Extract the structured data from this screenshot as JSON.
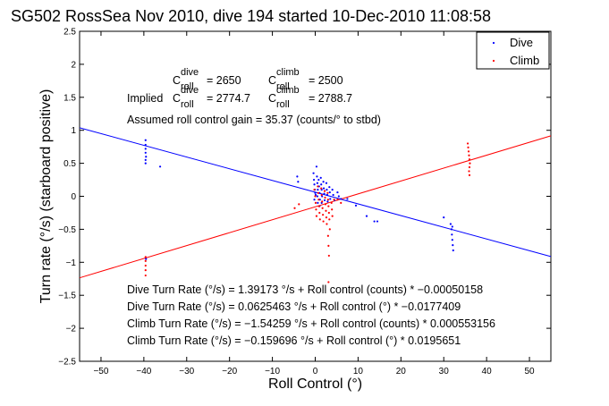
{
  "chart_data": {
    "type": "scatter",
    "title": "SG502 RossSea Nov 2010, dive 194 started 10-Dec-2010 11:08:58",
    "xlabel": "Roll Control (°)",
    "ylabel": "Turn rate (°/s) (starboard positive)",
    "xlim": [
      -55,
      55
    ],
    "ylim": [
      -2.5,
      2.5
    ],
    "xticks": [
      -50,
      -40,
      -30,
      -20,
      -10,
      0,
      10,
      20,
      30,
      40,
      50
    ],
    "yticks": [
      -2.5,
      -2,
      -1.5,
      -1,
      -0.5,
      0,
      0.5,
      1,
      1.5,
      2,
      2.5
    ],
    "grid": false,
    "legend": {
      "position": "top-right",
      "entries": [
        {
          "label": "Dive",
          "color": "#0000ff"
        },
        {
          "label": "Climb",
          "color": "#ff0000"
        }
      ]
    },
    "series": [
      {
        "name": "Dive",
        "color": "#0000ff",
        "fit": {
          "intercept": 0.0625463,
          "slope": -0.0177409
        },
        "points": [
          [
            -39.6,
            0.85
          ],
          [
            -39.6,
            0.78
          ],
          [
            -39.6,
            0.72
          ],
          [
            -39.6,
            0.66
          ],
          [
            -39.5,
            0.6
          ],
          [
            -39.6,
            0.55
          ],
          [
            -39.6,
            0.5
          ],
          [
            -36.2,
            0.45
          ],
          [
            -39.5,
            -0.95
          ],
          [
            -4.2,
            0.3
          ],
          [
            -4.0,
            0.22
          ],
          [
            -0.4,
            0.35
          ],
          [
            -0.3,
            0.25
          ],
          [
            -0.2,
            0.18
          ],
          [
            -0.1,
            0.1
          ],
          [
            0.0,
            0.05
          ],
          [
            0.1,
            0.02
          ],
          [
            -0.2,
            -0.05
          ],
          [
            0.3,
            0.45
          ],
          [
            0.4,
            0.3
          ],
          [
            0.5,
            0.2
          ],
          [
            0.6,
            0.1
          ],
          [
            0.5,
            0.0
          ],
          [
            0.6,
            -0.1
          ],
          [
            0.8,
            0.25
          ],
          [
            0.9,
            0.15
          ],
          [
            1.0,
            0.05
          ],
          [
            1.1,
            -0.05
          ],
          [
            1.0,
            -0.15
          ],
          [
            1.3,
            0.28
          ],
          [
            1.4,
            0.18
          ],
          [
            1.5,
            0.1
          ],
          [
            1.6,
            0.0
          ],
          [
            1.5,
            -0.1
          ],
          [
            1.9,
            0.22
          ],
          [
            2.0,
            0.12
          ],
          [
            2.1,
            0.04
          ],
          [
            2.2,
            -0.06
          ],
          [
            2.6,
            0.2
          ],
          [
            2.7,
            0.1
          ],
          [
            2.8,
            0.02
          ],
          [
            2.9,
            -0.08
          ],
          [
            3.3,
            0.14
          ],
          [
            3.4,
            0.06
          ],
          [
            3.5,
            -0.04
          ],
          [
            4.0,
            0.1
          ],
          [
            4.2,
            0.02
          ],
          [
            4.5,
            -0.06
          ],
          [
            5.2,
            0.06
          ],
          [
            5.5,
            0.0
          ],
          [
            6.0,
            -0.04
          ],
          [
            7.5,
            -0.04
          ],
          [
            9.5,
            -0.14
          ],
          [
            12.0,
            -0.3
          ],
          [
            13.8,
            -0.38
          ],
          [
            14.5,
            -0.38
          ],
          [
            30.0,
            -0.32
          ],
          [
            31.6,
            -0.42
          ],
          [
            31.8,
            -0.5
          ],
          [
            31.9,
            -0.58
          ],
          [
            32.0,
            -0.66
          ],
          [
            32.1,
            -0.74
          ],
          [
            32.2,
            -0.82
          ],
          [
            32.0,
            -0.46
          ]
        ]
      },
      {
        "name": "Climb",
        "color": "#ff0000",
        "fit": {
          "intercept": -0.159696,
          "slope": 0.0195651
        },
        "points": [
          [
            -39.6,
            -0.92
          ],
          [
            -39.6,
            -0.98
          ],
          [
            -39.6,
            -1.05
          ],
          [
            -39.6,
            -1.12
          ],
          [
            -39.6,
            -1.2
          ],
          [
            -4.8,
            -0.18
          ],
          [
            -3.8,
            -0.12
          ],
          [
            -0.2,
            0.1
          ],
          [
            0.0,
            0.0
          ],
          [
            0.1,
            -0.1
          ],
          [
            0.2,
            -0.2
          ],
          [
            0.3,
            -0.3
          ],
          [
            0.6,
            0.15
          ],
          [
            0.7,
            0.05
          ],
          [
            0.8,
            -0.05
          ],
          [
            0.9,
            -0.15
          ],
          [
            1.0,
            -0.25
          ],
          [
            1.1,
            -0.35
          ],
          [
            1.4,
            0.12
          ],
          [
            1.5,
            0.02
          ],
          [
            1.6,
            -0.08
          ],
          [
            1.7,
            -0.18
          ],
          [
            1.8,
            -0.28
          ],
          [
            1.9,
            -0.38
          ],
          [
            2.2,
            0.08
          ],
          [
            2.3,
            -0.02
          ],
          [
            2.4,
            -0.12
          ],
          [
            2.5,
            -0.22
          ],
          [
            2.6,
            -0.32
          ],
          [
            2.7,
            -0.42
          ],
          [
            2.9,
            0.05
          ],
          [
            3.0,
            -0.05
          ],
          [
            3.1,
            -0.15
          ],
          [
            3.2,
            -0.25
          ],
          [
            3.3,
            -0.35
          ],
          [
            3.4,
            -0.5
          ],
          [
            3.0,
            -0.6
          ],
          [
            3.1,
            -0.75
          ],
          [
            3.2,
            -0.9
          ],
          [
            3.1,
            -1.3
          ],
          [
            3.8,
            -0.1
          ],
          [
            3.9,
            -0.2
          ],
          [
            4.0,
            -0.3
          ],
          [
            4.4,
            -0.05
          ],
          [
            5.2,
            -0.05
          ],
          [
            6.0,
            -0.1
          ],
          [
            35.6,
            0.8
          ],
          [
            35.7,
            0.74
          ],
          [
            35.8,
            0.68
          ],
          [
            35.9,
            0.62
          ],
          [
            36.0,
            0.56
          ],
          [
            36.1,
            0.5
          ],
          [
            36.0,
            0.44
          ],
          [
            35.9,
            0.38
          ],
          [
            36.0,
            0.32
          ]
        ]
      }
    ],
    "annotations": {
      "coef_dive": {
        "label": "C",
        "sup": "dive",
        "sub": "roll",
        "value": "= 2650"
      },
      "coef_climb": {
        "label": "C",
        "sup": "climb",
        "sub": "roll",
        "value": "= 2500"
      },
      "implied_prefix": "Implied ",
      "implied_dive": {
        "label": "C",
        "sup": "dive",
        "sub": "roll",
        "value": "= 2774.7"
      },
      "implied_climb": {
        "label": "C",
        "sup": "climb",
        "sub": "roll",
        "value": "= 2788.7"
      },
      "gain": "Assumed roll control gain = 35.37 (counts/° to stbd)",
      "fits": [
        "Dive Turn Rate (°/s) = 1.39173 °/s + Roll control (counts) * −0.00050158",
        "Dive Turn Rate (°/s) = 0.0625463 °/s + Roll control (°) * −0.0177409",
        "Climb Turn Rate (°/s) = −1.54259 °/s + Roll control (counts) * 0.000553156",
        "Climb Turn Rate (°/s) = −0.159696 °/s + Roll control (°) * 0.0195651"
      ]
    }
  }
}
